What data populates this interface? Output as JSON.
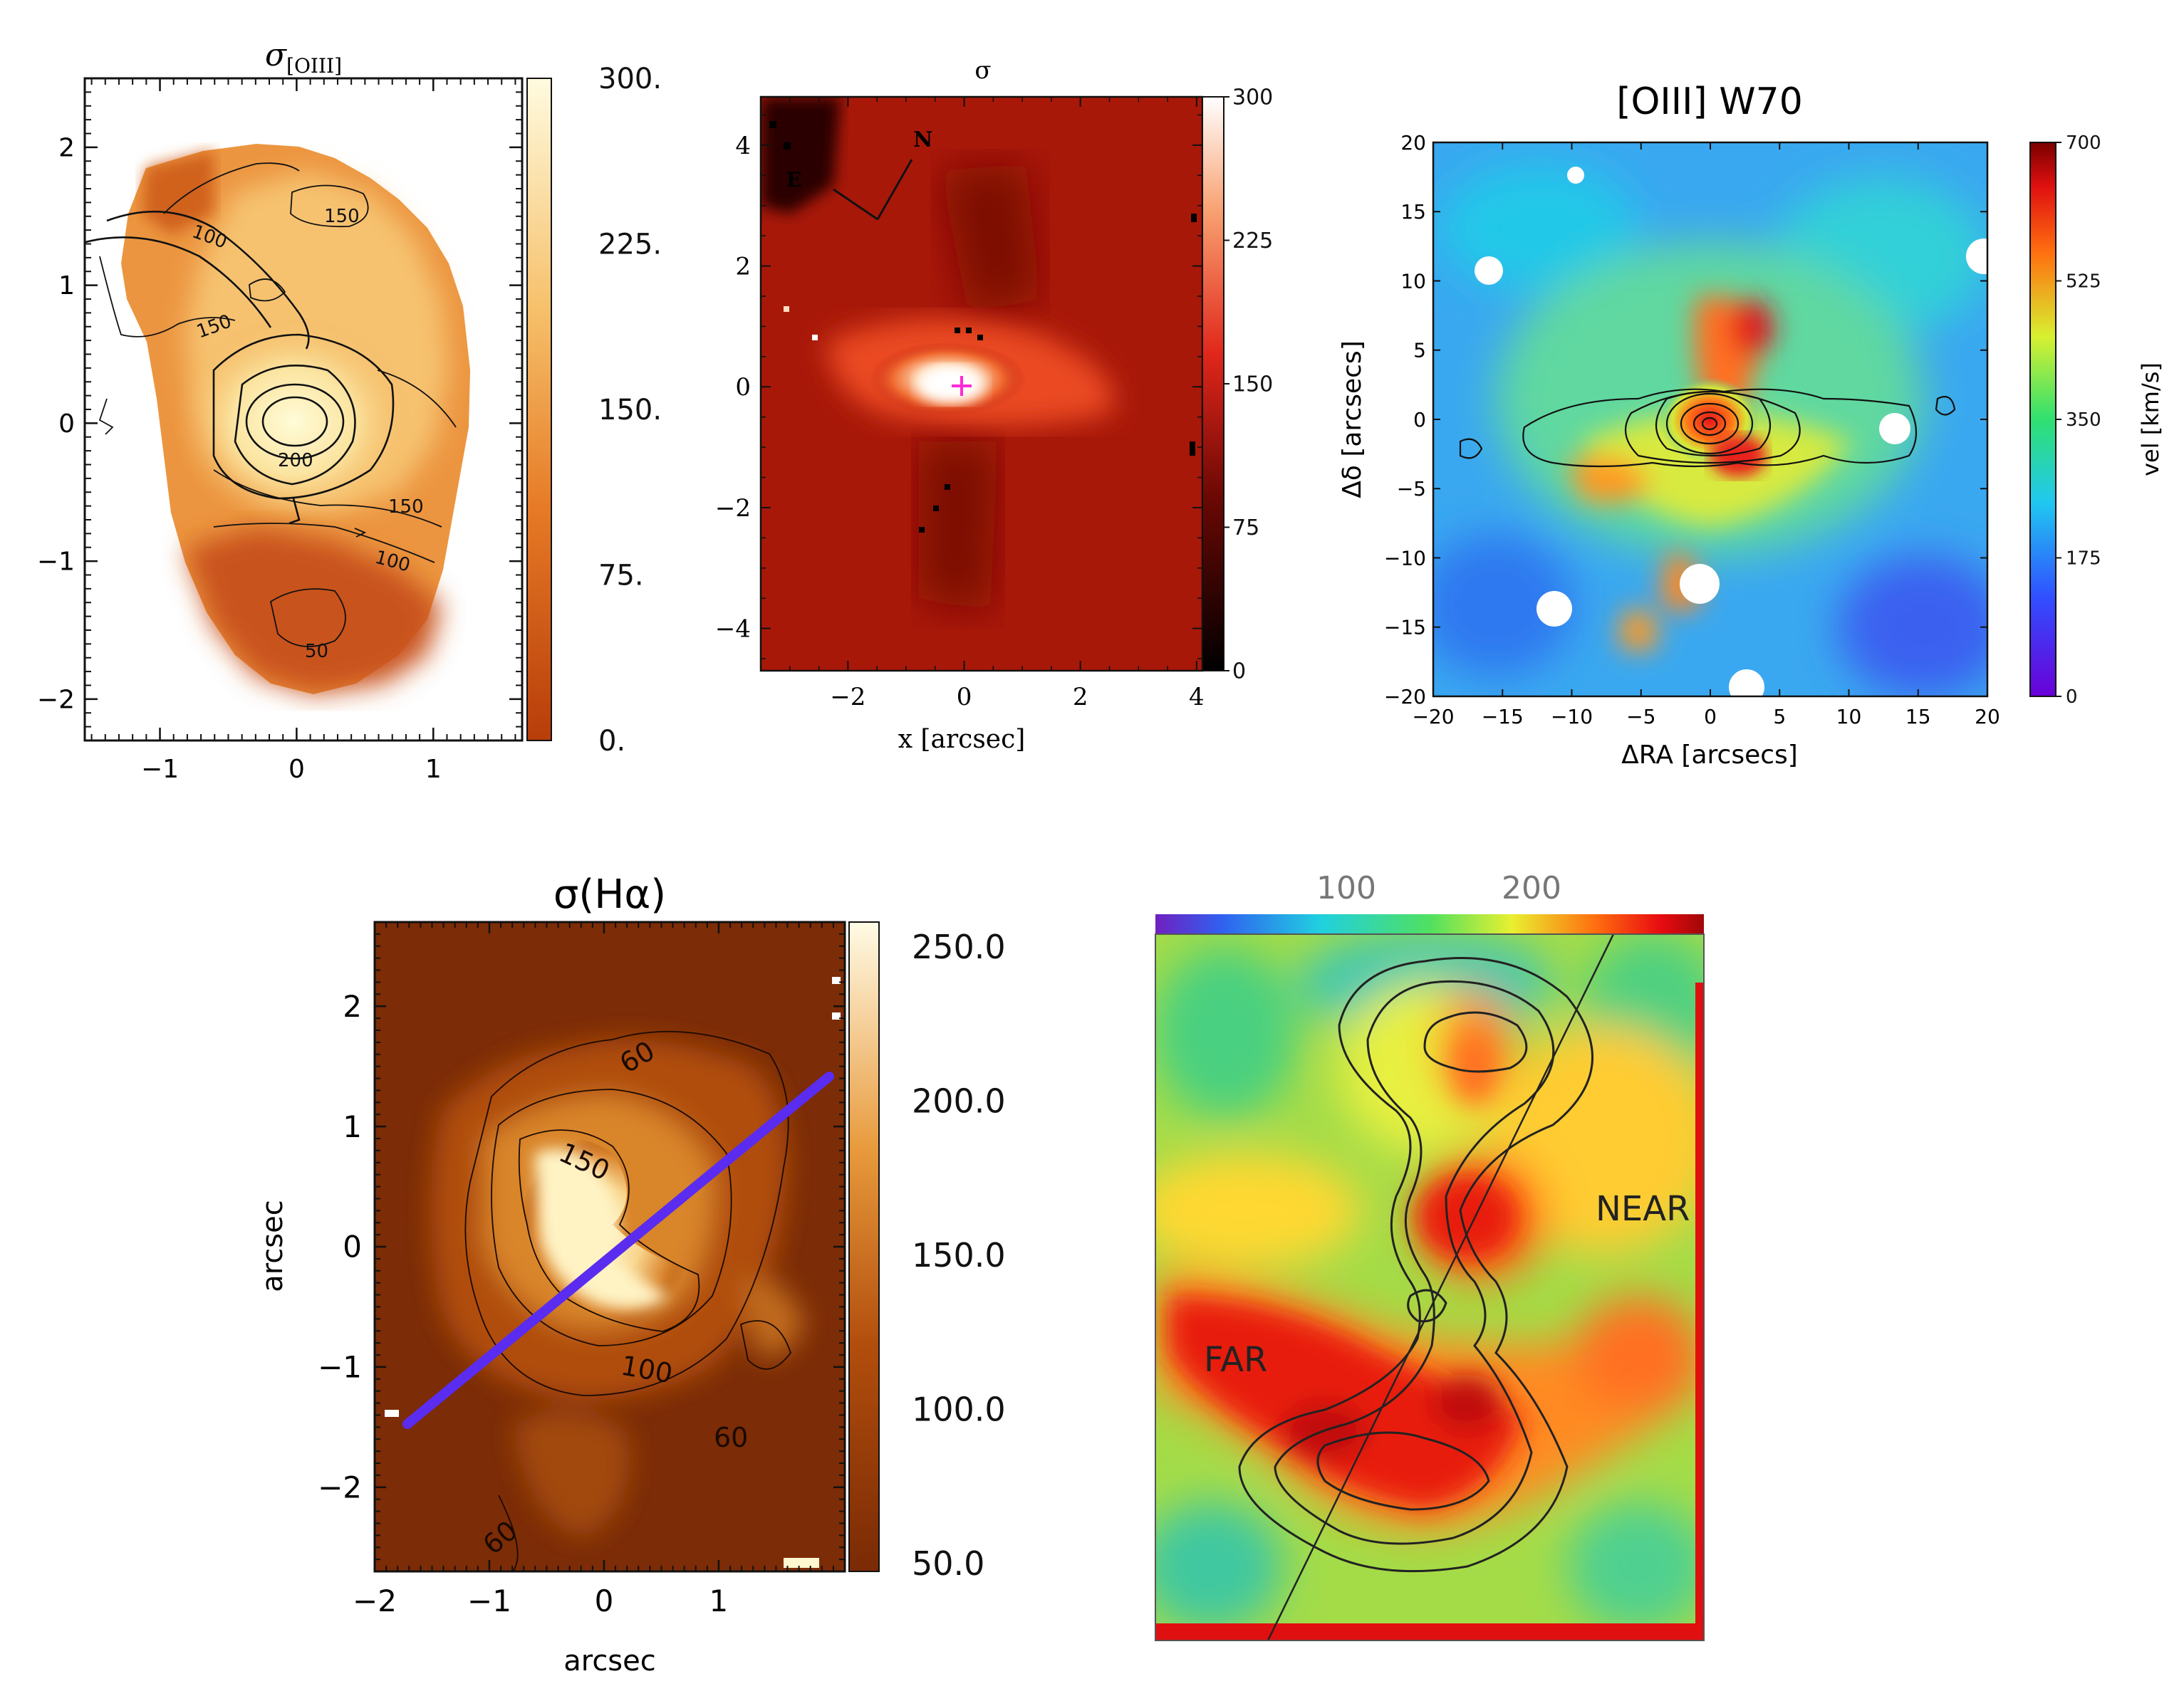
{
  "chart_data": [
    {
      "id": "panel1",
      "type": "heatmap",
      "title": "σ[OIII]",
      "x_ticks": [
        "−1",
        "0",
        "1"
      ],
      "y_ticks": [
        "−2",
        "−1",
        "0",
        "1",
        "2"
      ],
      "xlim": [
        -1.55,
        1.65
      ],
      "ylim": [
        -2.3,
        2.5
      ],
      "colorbar": {
        "ticks": [
          "0.",
          "75.",
          "150.",
          "225.",
          "300."
        ],
        "range": [
          0,
          300
        ]
      },
      "contour_labels": [
        "150",
        "100",
        "150",
        "200",
        "150",
        "100",
        "50"
      ],
      "colors": {
        "high": "#fff6c2",
        "mid": "#f2b45c",
        "low": "#c0470f"
      }
    },
    {
      "id": "panel2",
      "type": "heatmap",
      "title": "σ",
      "xlabel": "x [arcsec]",
      "x_ticks": [
        "−2",
        "0",
        "2",
        "4"
      ],
      "y_ticks": [
        "−4",
        "−2",
        "0",
        "2",
        "4"
      ],
      "xlim": [
        -3.5,
        4.1
      ],
      "ylim": [
        -4.7,
        4.8
      ],
      "colorbar": {
        "ticks": [
          "0",
          "75",
          "150",
          "225",
          "300"
        ],
        "range": [
          0,
          300
        ]
      },
      "compass": [
        "N",
        "E"
      ],
      "colors": {
        "high": "#ffffff",
        "mid": "#e2301a",
        "low": "#120202",
        "marker": "#ff2ad4"
      }
    },
    {
      "id": "panel3",
      "type": "heatmap",
      "title": "[OIII] W70",
      "xlabel": "ΔRA [arcsecs]",
      "ylabel": "Δδ [arcsecs]",
      "x_ticks": [
        "−20",
        "−15",
        "−10",
        "−5",
        "0",
        "5",
        "10",
        "15",
        "20"
      ],
      "y_ticks": [
        "−20",
        "−15",
        "−10",
        "−5",
        "0",
        "5",
        "10",
        "15",
        "20"
      ],
      "xlim": [
        -20,
        20
      ],
      "ylim": [
        -20,
        20
      ],
      "colorbar": {
        "label": "vel [km/s]",
        "ticks": [
          "0",
          "175",
          "350",
          "525",
          "700"
        ],
        "range": [
          0,
          700
        ]
      },
      "colors": {
        "background": "#3aa8f0",
        "ridge": "#f0e030",
        "peak": "#e0141a"
      }
    },
    {
      "id": "panel4",
      "type": "heatmap",
      "title": "σ(Hα)",
      "xlabel": "arcsec",
      "ylabel": "arcsec",
      "x_ticks": [
        "−2",
        "−1",
        "0",
        "1"
      ],
      "y_ticks": [
        "−2",
        "−1",
        "0",
        "1",
        "2"
      ],
      "xlim": [
        -2,
        2.1
      ],
      "ylim": [
        -2.7,
        2.7
      ],
      "colorbar": {
        "ticks": [
          "50.0",
          "100.0",
          "150.0",
          "200.0",
          "250.0"
        ],
        "range": [
          50,
          250
        ]
      },
      "contour_labels": [
        "60",
        "150",
        "100",
        "60",
        "60"
      ],
      "colors": {
        "high": "#fff5c8",
        "mid": "#c0600e",
        "low": "#7a2a05",
        "line": "#5a2cf0"
      }
    },
    {
      "id": "panel5",
      "type": "heatmap",
      "colorbar": {
        "ticks": [
          "100",
          "200"
        ]
      },
      "region_labels": [
        "NEAR",
        "FAR"
      ],
      "colors": {
        "background": "#9edc4a",
        "hot": "#e81c10",
        "cool": "#40c8a0"
      }
    }
  ]
}
